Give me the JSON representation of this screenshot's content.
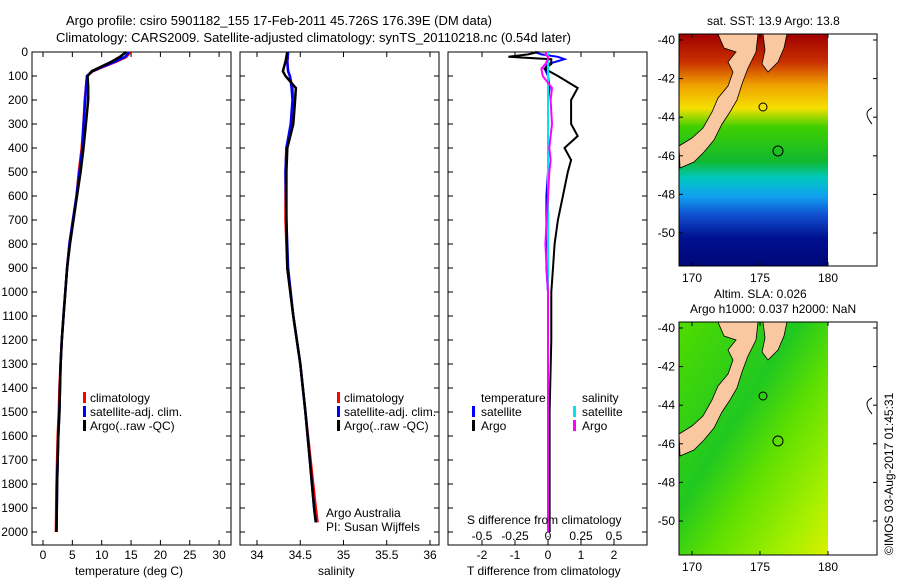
{
  "title": {
    "line1": "Argo profile: csiro 5901182_155 17-Feb-2011 45.726S 176.39E (DM data)",
    "line2": "Climatology: CARS2009. Satellite-adjusted climatology: synTS_20110218.nc (0.54d later)"
  },
  "colors": {
    "climatology": "#ff0000",
    "satellite": "#0000ff",
    "argo": "#000000",
    "sal_satellite": "#00e5ee",
    "sal_argo": "#ff00ff"
  },
  "chart_data": [
    {
      "type": "line",
      "id": "temperature",
      "xlabel": "temperature (deg C)",
      "ylabel": "",
      "xlim": [
        -2,
        32
      ],
      "ylim": [
        2000,
        0
      ],
      "xticks": [
        "0",
        "5",
        "10",
        "15",
        "20",
        "25",
        "30"
      ],
      "xtick_values": [
        0,
        5,
        10,
        15,
        20,
        25,
        30
      ],
      "yticks": [
        "0",
        "100",
        "200",
        "300",
        "400",
        "500",
        "600",
        "700",
        "800",
        "900",
        "1000",
        "1100",
        "1200",
        "1300",
        "1400",
        "1500",
        "1600",
        "1700",
        "1800",
        "1900",
        "2000"
      ],
      "legend": [
        "climatology",
        "satellite-adj. clim.",
        "Argo(..raw -QC)"
      ],
      "depth": [
        0,
        20,
        40,
        60,
        80,
        100,
        150,
        200,
        300,
        400,
        500,
        600,
        700,
        800,
        900,
        1000,
        1100,
        1200,
        1300,
        1400,
        1500,
        1600,
        1800,
        2000
      ],
      "series": [
        {
          "name": "climatology",
          "color": "#ff0000",
          "values": [
            14.9,
            14.2,
            12.5,
            10.5,
            8.5,
            7.5,
            7.3,
            7.1,
            6.9,
            6.6,
            6.1,
            5.7,
            5.1,
            4.5,
            4.1,
            3.8,
            3.5,
            3.2,
            3.0,
            2.8,
            2.7,
            2.5,
            2.3,
            2.2
          ]
        },
        {
          "name": "satellite-adj. clim.",
          "color": "#0000ff",
          "values": [
            14.7,
            14.0,
            12.3,
            10.3,
            8.4,
            7.5,
            7.3,
            7.2,
            6.9,
            6.7,
            6.2,
            5.7,
            5.1,
            4.5,
            4.1,
            3.8,
            3.5,
            3.2,
            3.0,
            2.9,
            2.8,
            2.6,
            2.4,
            2.3
          ]
        },
        {
          "name": "Argo(..raw -QC)",
          "color": "#000000",
          "values": [
            14.2,
            13.1,
            11.7,
            10.0,
            8.3,
            7.6,
            7.7,
            7.7,
            7.3,
            6.9,
            6.4,
            5.8,
            5.2,
            4.6,
            4.1,
            3.8,
            3.5,
            3.2,
            3.0,
            2.9,
            2.8,
            2.6,
            2.4,
            2.3
          ]
        }
      ]
    },
    {
      "type": "line",
      "id": "salinity",
      "xlabel": "salinity",
      "xlim": [
        33.8,
        36.1
      ],
      "ylim": [
        2000,
        0
      ],
      "xticks": [
        "34",
        "34.5",
        "35",
        "35.5",
        "36"
      ],
      "xtick_values": [
        34,
        34.5,
        35,
        35.5,
        36
      ],
      "legend": [
        "climatology",
        "satellite-adj. clim.",
        "Argo(..raw -QC)"
      ],
      "annotation": [
        "Argo Australia",
        "PI: Susan Wijffels"
      ],
      "depth": [
        0,
        40,
        80,
        100,
        150,
        200,
        300,
        400,
        500,
        700,
        900,
        1100,
        1300,
        1500,
        1700,
        1900,
        1960
      ],
      "series": [
        {
          "name": "climatology",
          "color": "#ff0000",
          "values": [
            34.36,
            34.35,
            34.36,
            34.38,
            34.41,
            34.42,
            34.4,
            34.34,
            34.33,
            34.33,
            34.35,
            34.42,
            34.5,
            34.56,
            34.62,
            34.68,
            34.7
          ]
        },
        {
          "name": "satellite-adj. clim.",
          "color": "#0000ff",
          "values": [
            34.36,
            34.35,
            34.36,
            34.38,
            34.4,
            34.41,
            34.39,
            34.34,
            34.33,
            34.34,
            34.36,
            34.42,
            34.5,
            34.56,
            34.61,
            34.66,
            34.68
          ]
        },
        {
          "name": "Argo(..raw -QC)",
          "color": "#000000",
          "values": [
            34.35,
            34.33,
            34.3,
            34.33,
            34.45,
            34.44,
            34.42,
            34.35,
            34.34,
            34.34,
            34.35,
            34.42,
            34.5,
            34.56,
            34.61,
            34.66,
            34.68
          ]
        }
      ]
    },
    {
      "type": "line",
      "id": "difference",
      "xlabel": "T difference from climatology",
      "x2label": "S difference from climatology",
      "xlim": [
        -3,
        3
      ],
      "xticks": [
        "-2",
        "-1",
        "0",
        "1",
        "2"
      ],
      "xtick_values": [
        -2,
        -1,
        0,
        1,
        2
      ],
      "x2ticks": [
        "-0.5",
        "-0.25",
        "0",
        "0.25",
        "0.5"
      ],
      "x2tick_values": [
        -0.5,
        -0.25,
        0,
        0.25,
        0.5
      ],
      "legend_headers": [
        "temperature",
        "salinity"
      ],
      "legend": [
        "satellite",
        "Argo",
        "satellite",
        "Argo"
      ],
      "depth": [
        0,
        10,
        20,
        30,
        50,
        70,
        100,
        150,
        200,
        300,
        350,
        400,
        450,
        500,
        600,
        700,
        800,
        900,
        1000,
        1200,
        1500,
        2000
      ],
      "series": [
        {
          "name": "T satellite",
          "color": "#0000ff",
          "unit": "T",
          "values": [
            -0.4,
            -0.2,
            0.3,
            0.5,
            0.0,
            -0.1,
            0.0,
            0.05,
            0.0,
            0.0,
            0.0,
            0.0,
            0.0,
            0.0,
            -0.05,
            -0.05,
            -0.05,
            -0.05,
            0.0,
            0.0,
            0.0,
            0.05
          ]
        },
        {
          "name": "T Argo",
          "color": "#000000",
          "unit": "T",
          "values": [
            -0.3,
            -0.6,
            -1.2,
            0.1,
            0.1,
            -0.1,
            0.3,
            0.9,
            0.7,
            0.7,
            0.9,
            0.5,
            0.7,
            0.6,
            0.45,
            0.3,
            0.2,
            0.15,
            0.1,
            0.1,
            0.05,
            0.05
          ]
        },
        {
          "name": "S satellite",
          "color": "#00e5ee",
          "unit": "S",
          "values": [
            0.0,
            0.0,
            0.0,
            0.0,
            0.0,
            0.0,
            0.0,
            0.0,
            0.0,
            0.0,
            0.0,
            0.0,
            0.0,
            0.0,
            0.0,
            0.0,
            0.0,
            0.0,
            0.0,
            0.0,
            0.0,
            0.0
          ]
        },
        {
          "name": "S Argo",
          "color": "#ff00ff",
          "unit": "S",
          "values": [
            -0.01,
            -0.02,
            0.0,
            0.0,
            -0.02,
            -0.05,
            -0.04,
            0.03,
            0.02,
            0.03,
            0.02,
            0.01,
            0.02,
            0.01,
            0.0,
            -0.01,
            -0.02,
            -0.01,
            0.0,
            0.0,
            0.0,
            0.0
          ]
        }
      ]
    },
    {
      "type": "heatmap",
      "id": "sst-map",
      "title": "sat. SST: 13.9 Argo: 13.8",
      "xticks": [
        "170",
        "175",
        "180"
      ],
      "yticks": [
        "-40",
        "-42",
        "-44",
        "-46",
        "-48",
        "-50"
      ]
    },
    {
      "type": "heatmap",
      "id": "sla-map",
      "title_line1": "Altim. SLA: 0.026",
      "title_line2": "Argo h1000: 0.037 h2000: NaN",
      "xticks": [
        "170",
        "175",
        "180"
      ],
      "yticks": [
        "-40",
        "-42",
        "-44",
        "-46",
        "-48",
        "-50"
      ]
    }
  ],
  "footer": {
    "copyright": "©IMOS 03-Aug-2017 01:45:31"
  }
}
